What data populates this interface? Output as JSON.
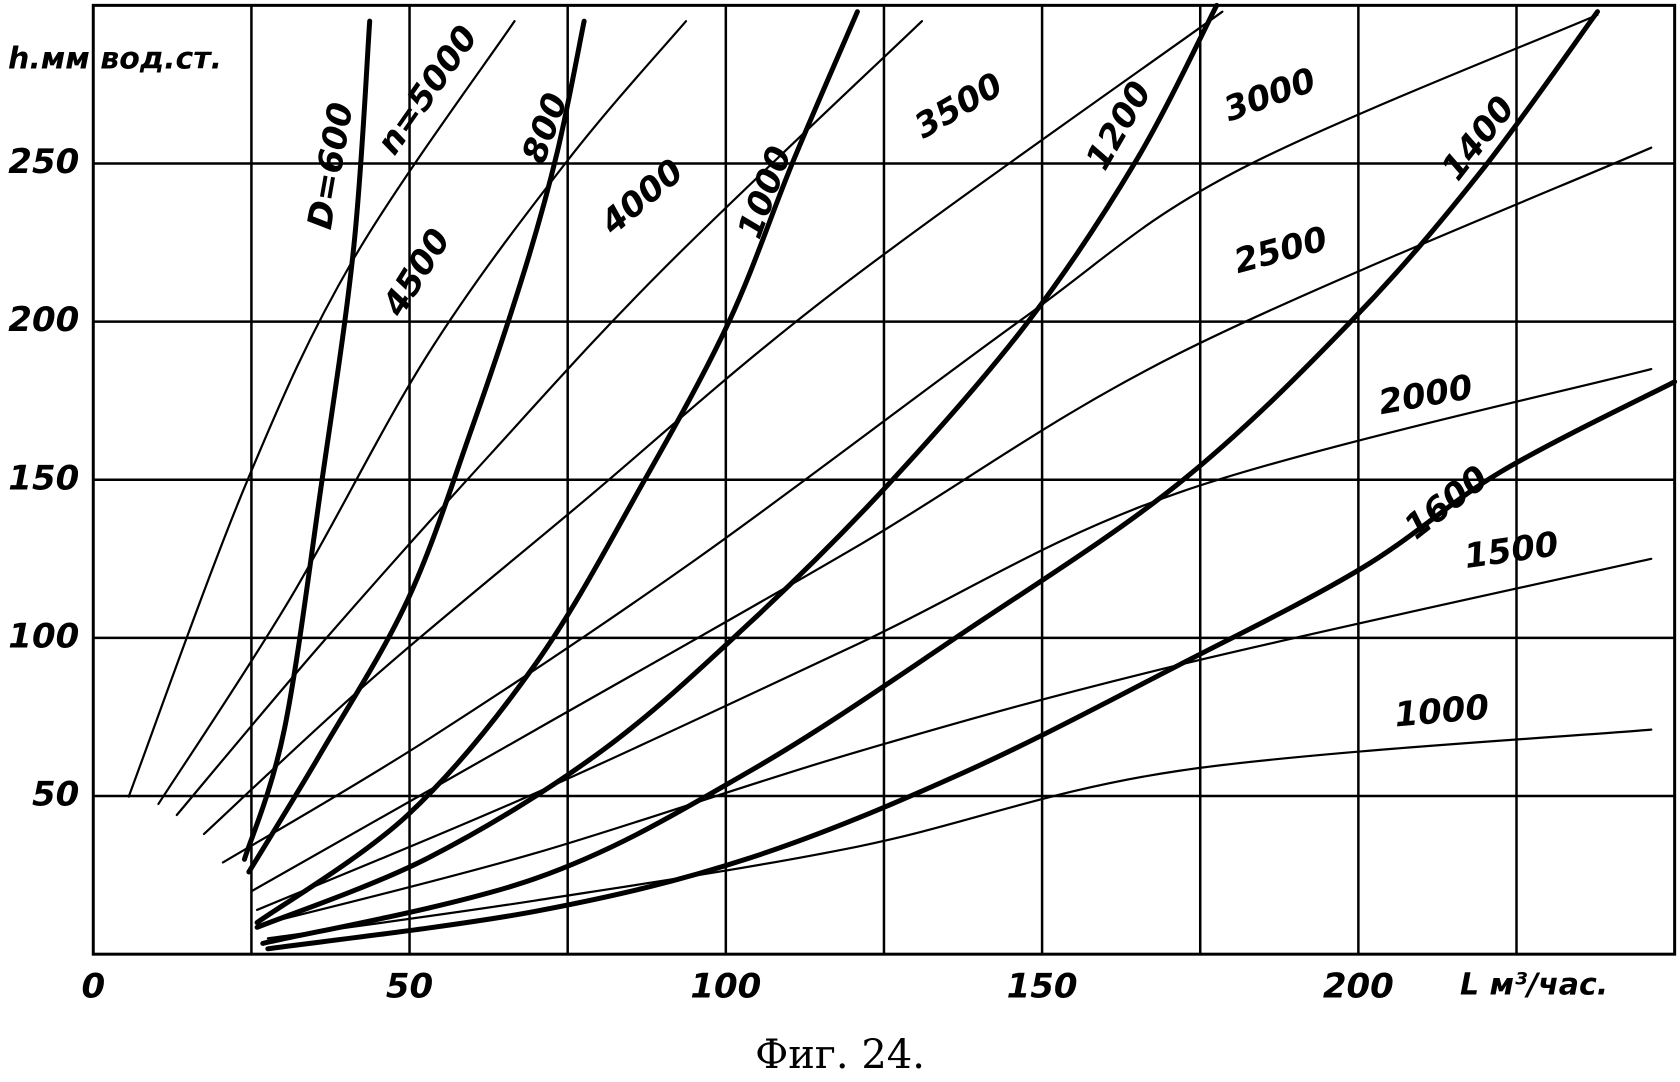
{
  "chart_data": {
    "type": "line",
    "ylabel": "h.мм вод.ст.",
    "xlabel": "L м³/час.",
    "caption": "Фиг. 24.",
    "xlim": [
      0,
      250
    ],
    "ylim": [
      0,
      300
    ],
    "xticks": [
      0,
      50,
      100,
      150,
      200
    ],
    "yticks": [
      50,
      100,
      150,
      200,
      250
    ],
    "xgrid": [
      25,
      50,
      75,
      100,
      125,
      150,
      175,
      200,
      225
    ],
    "grid": true,
    "series": [
      {
        "name": "D=600",
        "color": "#000000",
        "weight": "thick",
        "x": [
          23.9,
          30.2,
          36.1,
          41.2,
          43.7
        ],
        "y": [
          30,
          71,
          149,
          224,
          295
        ]
      },
      {
        "name": "800",
        "color": "#000000",
        "weight": "thick",
        "x": [
          24.6,
          36.1,
          49.7,
          59.8,
          68.3,
          73.4,
          77.6
        ],
        "y": [
          26,
          64,
          112,
          166,
          217,
          254,
          295
        ]
      },
      {
        "name": "1000",
        "color": "#000000",
        "weight": "thick",
        "x": [
          25.9,
          49.7,
          70,
          86.9,
          100.5,
          110.7,
          120.8
        ],
        "y": [
          10,
          44,
          92,
          149,
          200,
          251,
          298
        ]
      },
      {
        "name": "1200",
        "color": "#000000",
        "weight": "thick",
        "x": [
          25.9,
          53,
          80.2,
          103.9,
          125.9,
          147.8,
          164.9,
          177.6
        ],
        "y": [
          8.5,
          30.5,
          64,
          105,
          149,
          200,
          251,
          300
        ]
      },
      {
        "name": "1400",
        "color": "#000000",
        "weight": "thick",
        "x": [
          26.8,
          70,
          103.9,
          137.8,
          171.7,
          198.8,
          219.2,
          237.8
        ],
        "y": [
          3.4,
          24,
          58,
          102,
          149,
          200,
          247,
          298
        ]
      },
      {
        "name": "1600",
        "color": "#000000",
        "weight": "thick",
        "x": [
          27.6,
          70,
          103.9,
          137.8,
          171.7,
          200.5,
          222.5,
          250
        ],
        "y": [
          1.7,
          13.6,
          30.5,
          57.6,
          91.5,
          122,
          152.5,
          181
        ]
      },
      {
        "name": "n=5000",
        "color": "#000000",
        "weight": "thin",
        "x": [
          5.6,
          24.2,
          41.2,
          66.6
        ],
        "y": [
          49.8,
          149,
          220,
          295
        ]
      },
      {
        "name": "4500",
        "color": "#000000",
        "weight": "thin",
        "x": [
          10.3,
          31,
          53,
          75,
          93.7
        ],
        "y": [
          47.5,
          112,
          190,
          251,
          295
        ]
      },
      {
        "name": "4000",
        "color": "#000000",
        "weight": "thin",
        "x": [
          13.2,
          36,
          63.2,
          90.3,
          131
        ],
        "y": [
          44,
          98,
          159,
          217,
          295
        ]
      },
      {
        "name": "3500",
        "color": "#000000",
        "weight": "thin",
        "x": [
          17.5,
          44.6,
          76.8,
          117.5,
          178.5
        ],
        "y": [
          38,
          88,
          142,
          210,
          298
        ]
      },
      {
        "name": "3000",
        "color": "#000000",
        "weight": "thin",
        "x": [
          20.5,
          53,
          95.4,
          146.3,
          180.2,
          237.8
        ],
        "y": [
          29,
          68,
          125,
          200,
          247,
          297
        ]
      },
      {
        "name": "2500",
        "color": "#000000",
        "weight": "thin",
        "x": [
          25.1,
          70,
          120.8,
          171.7,
          246.3
        ],
        "y": [
          20,
          71,
          129,
          190,
          255
        ]
      },
      {
        "name": "2000",
        "color": "#000000",
        "weight": "thin",
        "x": [
          25.9,
          70,
          120.8,
          171.7,
          246.3
        ],
        "y": [
          14,
          51,
          98,
          146,
          185
        ]
      },
      {
        "name": "1500",
        "color": "#000000",
        "weight": "thin",
        "x": [
          26.8,
          70,
          120.8,
          171.7,
          246.3
        ],
        "y": [
          9.5,
          32,
          64,
          91.5,
          125
        ]
      },
      {
        "name": "1000",
        "color": "#000000",
        "weight": "thin",
        "x": [
          27.6,
          70,
          120.8,
          171.7,
          246.3
        ],
        "y": [
          5,
          17,
          34,
          58,
          71
        ]
      }
    ]
  }
}
